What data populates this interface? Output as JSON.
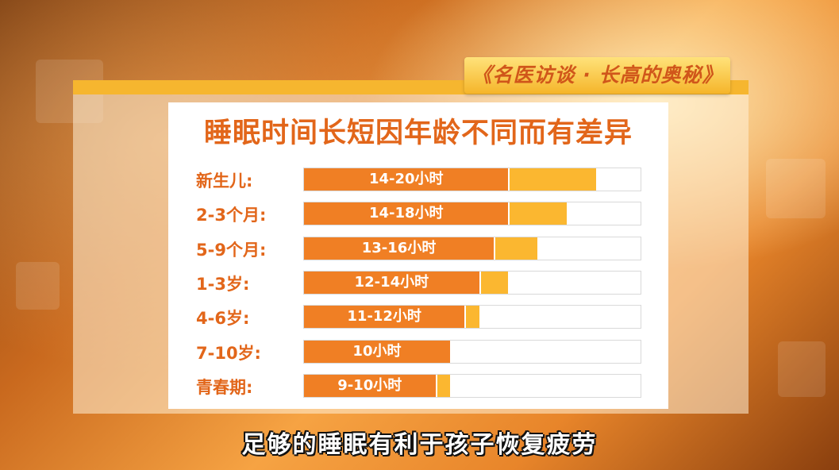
{
  "show_title": "《名医访谈 · 长高的奥秘》",
  "subtitle": "足够的睡眠有利于孩子恢复疲劳",
  "colors": {
    "min_segment": "#f07f24",
    "range_extension": "#fbb730",
    "accent_text": "#e2661a"
  },
  "chart_data": {
    "type": "bar",
    "orientation": "horizontal",
    "title": "睡眠时间长短因年龄不同而有差异",
    "unit": "小时",
    "xlim": [
      0,
      23
    ],
    "categories": [
      "新生儿:",
      "2-3个月:",
      "5-9个月:",
      "1-3岁:",
      "4-6岁:",
      "7-10岁:",
      "青春期:"
    ],
    "bar_labels": [
      "14-20小时",
      "14-18小时",
      "13-16小时",
      "12-14小时",
      "11-12小时",
      "10小时",
      "9-10小时"
    ],
    "min": [
      14,
      14,
      13,
      12,
      11,
      10,
      9
    ],
    "max": [
      20,
      18,
      16,
      14,
      12,
      10,
      10
    ],
    "grid": false,
    "legend": "none"
  }
}
